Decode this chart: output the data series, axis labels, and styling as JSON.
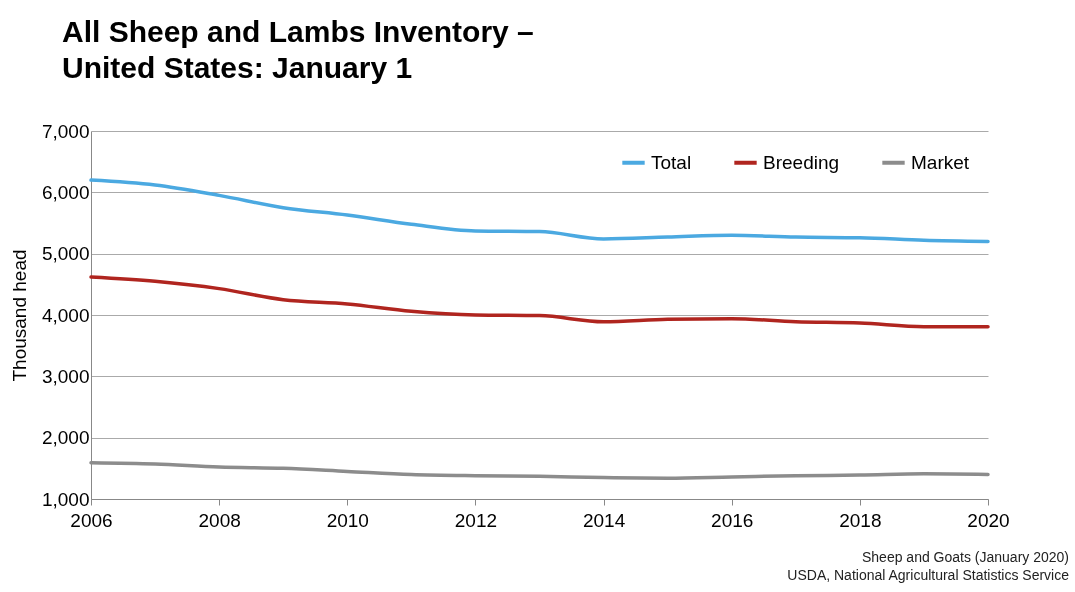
{
  "chart_data": {
    "type": "line",
    "title": "All Sheep and Lambs Inventory – United States: January 1",
    "ylabel": "Thousand head",
    "x": [
      2006,
      2007,
      2008,
      2009,
      2010,
      2011,
      2012,
      2013,
      2014,
      2015,
      2016,
      2017,
      2018,
      2019,
      2020
    ],
    "series": [
      {
        "name": "Total",
        "color": "#4ba9e1",
        "values": [
          6200,
          6120,
          5950,
          5750,
          5630,
          5480,
          5370,
          5360,
          5240,
          5270,
          5300,
          5270,
          5260,
          5220,
          5200
        ]
      },
      {
        "name": "Breeding",
        "color": "#b0251f",
        "values": [
          4620,
          4550,
          4430,
          4250,
          4180,
          4060,
          4000,
          3990,
          3890,
          3930,
          3940,
          3890,
          3870,
          3810,
          3810
        ]
      },
      {
        "name": "Market",
        "color": "#8c8c8c",
        "values": [
          1590,
          1570,
          1520,
          1500,
          1450,
          1400,
          1380,
          1370,
          1350,
          1340,
          1360,
          1380,
          1390,
          1410,
          1400
        ]
      }
    ],
    "xlim": [
      2006,
      2020
    ],
    "xticks": [
      2006,
      2008,
      2010,
      2012,
      2014,
      2016,
      2018,
      2020
    ],
    "ylim": [
      1000,
      7000
    ],
    "yticks": [
      {
        "value": 1000,
        "label": "1,000"
      },
      {
        "value": 2000,
        "label": "2,000"
      },
      {
        "value": 3000,
        "label": "3,000"
      },
      {
        "value": 4000,
        "label": "4,000"
      },
      {
        "value": 5000,
        "label": "5,000"
      },
      {
        "value": 6000,
        "label": "6,000"
      },
      {
        "value": 7000,
        "label": "7,000"
      }
    ],
    "grid": "y",
    "legend": "top right",
    "marker": "none",
    "line_style": "solid",
    "annotations": [
      "Sheep and Goats (January 2020)",
      "USDA, National Agricultural Statistics Service"
    ]
  }
}
